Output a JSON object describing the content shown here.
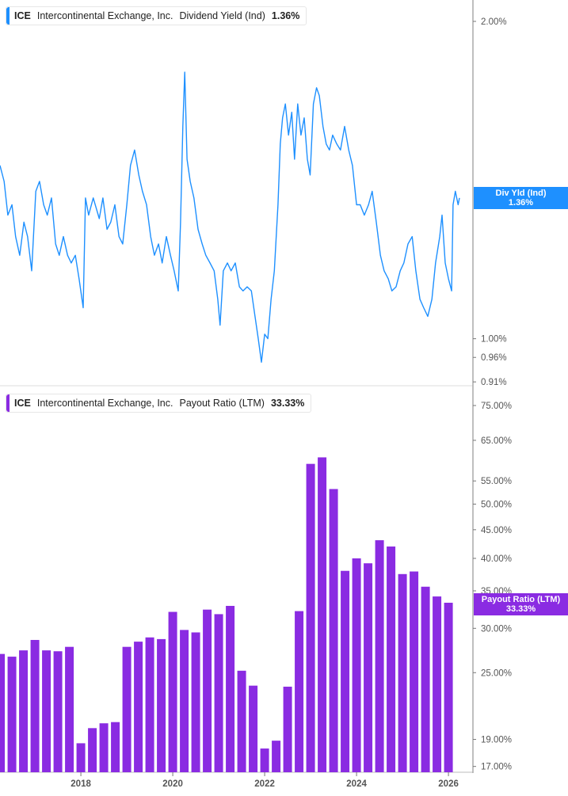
{
  "panels": {
    "top": {
      "legend": {
        "ticker": "ICE",
        "company": "Intercontinental Exchange, Inc.",
        "metric": "Dividend Yield (Ind)",
        "value": "1.36%"
      },
      "flag": {
        "label": "Div Yld (Ind)",
        "value": "1.36%"
      }
    },
    "bottom": {
      "legend": {
        "ticker": "ICE",
        "company": "Intercontinental Exchange, Inc.",
        "metric": "Payout Ratio (LTM)",
        "value": "33.33%"
      },
      "flag": {
        "label": "Payout Ratio (LTM)",
        "value": "33.33%"
      }
    }
  },
  "chart_data": [
    {
      "type": "line",
      "series_color": "#1e90ff",
      "yscale": "log",
      "ylim": [
        0.89,
        2.1
      ],
      "y_ticks": [
        "2.00%",
        "1.00%",
        "0.96%",
        "0.91%"
      ],
      "y_tick_values": [
        2.0,
        1.0,
        0.96,
        0.91
      ],
      "x_ticks": [
        "2018",
        "2020",
        "2022",
        "2024",
        "2026"
      ],
      "grid": false,
      "x": [
        2016.24,
        2016.33,
        2016.41,
        2016.5,
        2016.58,
        2016.67,
        2016.76,
        2016.84,
        2016.93,
        2017.02,
        2017.1,
        2017.19,
        2017.27,
        2017.36,
        2017.45,
        2017.53,
        2017.62,
        2017.71,
        2017.79,
        2017.88,
        2017.96,
        2018.05,
        2018.1,
        2018.17,
        2018.27,
        2018.4,
        2018.48,
        2018.57,
        2018.65,
        2018.74,
        2018.83,
        2018.91,
        2019.0,
        2019.08,
        2019.17,
        2019.26,
        2019.34,
        2019.43,
        2019.52,
        2019.6,
        2019.69,
        2019.77,
        2019.86,
        2019.95,
        2020.03,
        2020.12,
        2020.17,
        2020.22,
        2020.26,
        2020.31,
        2020.38,
        2020.46,
        2020.55,
        2020.64,
        2020.72,
        2020.81,
        2020.9,
        2020.98,
        2021.03,
        2021.1,
        2021.19,
        2021.27,
        2021.36,
        2021.45,
        2021.53,
        2021.62,
        2021.71,
        2021.79,
        2021.86,
        2021.93,
        2022.0,
        2022.07,
        2022.14,
        2022.21,
        2022.29,
        2022.34,
        2022.39,
        2022.45,
        2022.52,
        2022.59,
        2022.65,
        2022.72,
        2022.79,
        2022.86,
        2022.93,
        2022.99,
        2023.06,
        2023.13,
        2023.19,
        2023.27,
        2023.34,
        2023.41,
        2023.48,
        2023.57,
        2023.65,
        2023.74,
        2023.83,
        2023.91,
        2024.0,
        2024.08,
        2024.17,
        2024.26,
        2024.34,
        2024.43,
        2024.52,
        2024.6,
        2024.69,
        2024.77,
        2024.86,
        2024.95,
        2025.03,
        2025.12,
        2025.21,
        2025.29,
        2025.38,
        2025.46,
        2025.55,
        2025.64,
        2025.72,
        2025.81,
        2025.86,
        2025.93,
        2026.0,
        2026.07,
        2026.1,
        2026.15,
        2026.21,
        2026.24
      ],
      "y": [
        1.46,
        1.41,
        1.31,
        1.34,
        1.25,
        1.2,
        1.29,
        1.25,
        1.16,
        1.38,
        1.41,
        1.34,
        1.31,
        1.36,
        1.23,
        1.2,
        1.25,
        1.2,
        1.18,
        1.2,
        1.14,
        1.07,
        1.36,
        1.31,
        1.36,
        1.3,
        1.36,
        1.27,
        1.29,
        1.34,
        1.25,
        1.23,
        1.34,
        1.46,
        1.51,
        1.43,
        1.38,
        1.34,
        1.25,
        1.2,
        1.23,
        1.18,
        1.25,
        1.2,
        1.16,
        1.11,
        1.29,
        1.59,
        1.79,
        1.48,
        1.41,
        1.36,
        1.27,
        1.23,
        1.2,
        1.18,
        1.16,
        1.09,
        1.03,
        1.16,
        1.18,
        1.16,
        1.18,
        1.12,
        1.11,
        1.12,
        1.11,
        1.05,
        1.0,
        0.95,
        1.01,
        1.0,
        1.09,
        1.16,
        1.34,
        1.53,
        1.62,
        1.67,
        1.56,
        1.64,
        1.48,
        1.67,
        1.56,
        1.62,
        1.48,
        1.43,
        1.67,
        1.73,
        1.7,
        1.59,
        1.53,
        1.51,
        1.56,
        1.53,
        1.51,
        1.59,
        1.51,
        1.46,
        1.34,
        1.34,
        1.31,
        1.34,
        1.38,
        1.29,
        1.2,
        1.16,
        1.14,
        1.11,
        1.12,
        1.16,
        1.18,
        1.23,
        1.25,
        1.16,
        1.09,
        1.07,
        1.05,
        1.09,
        1.18,
        1.25,
        1.31,
        1.18,
        1.14,
        1.11,
        1.34,
        1.38,
        1.34,
        1.36
      ]
    },
    {
      "type": "bar",
      "series_color": "#8a2be2",
      "yscale": "log",
      "ylim": [
        17.0,
        75.0
      ],
      "y_ticks": [
        "75.00%",
        "65.00%",
        "55.00%",
        "50.00%",
        "45.00%",
        "40.00%",
        "35.00%",
        "30.00%",
        "25.00%",
        "19.00%",
        "17.00%"
      ],
      "y_tick_values": [
        75,
        65,
        55,
        50,
        45,
        40,
        35,
        30,
        25,
        19,
        17
      ],
      "x_ticks": [
        "2018",
        "2020",
        "2022",
        "2024",
        "2026"
      ],
      "grid": false,
      "x": [
        2016.25,
        2016.5,
        2016.75,
        2017.0,
        2017.25,
        2017.5,
        2017.75,
        2018.0,
        2018.25,
        2018.5,
        2018.75,
        2019.0,
        2019.25,
        2019.5,
        2019.75,
        2020.0,
        2020.25,
        2020.5,
        2020.75,
        2021.0,
        2021.25,
        2021.5,
        2021.75,
        2022.0,
        2022.25,
        2022.5,
        2022.75,
        2023.0,
        2023.25,
        2023.5,
        2023.75,
        2024.0,
        2024.25,
        2024.5,
        2024.75,
        2025.0,
        2025.25,
        2025.5,
        2025.75,
        2026.0
      ],
      "values": [
        27.0,
        26.7,
        27.4,
        28.6,
        27.4,
        27.3,
        27.8,
        18.7,
        19.9,
        20.3,
        20.4,
        27.8,
        28.4,
        28.9,
        28.7,
        32.1,
        29.8,
        29.5,
        32.4,
        31.8,
        32.9,
        25.2,
        23.7,
        18.3,
        18.9,
        23.6,
        32.2,
        59.0,
        60.6,
        53.2,
        38.0,
        40.0,
        39.2,
        43.1,
        42.0,
        37.5,
        37.9,
        35.6,
        34.2,
        33.33
      ]
    }
  ]
}
